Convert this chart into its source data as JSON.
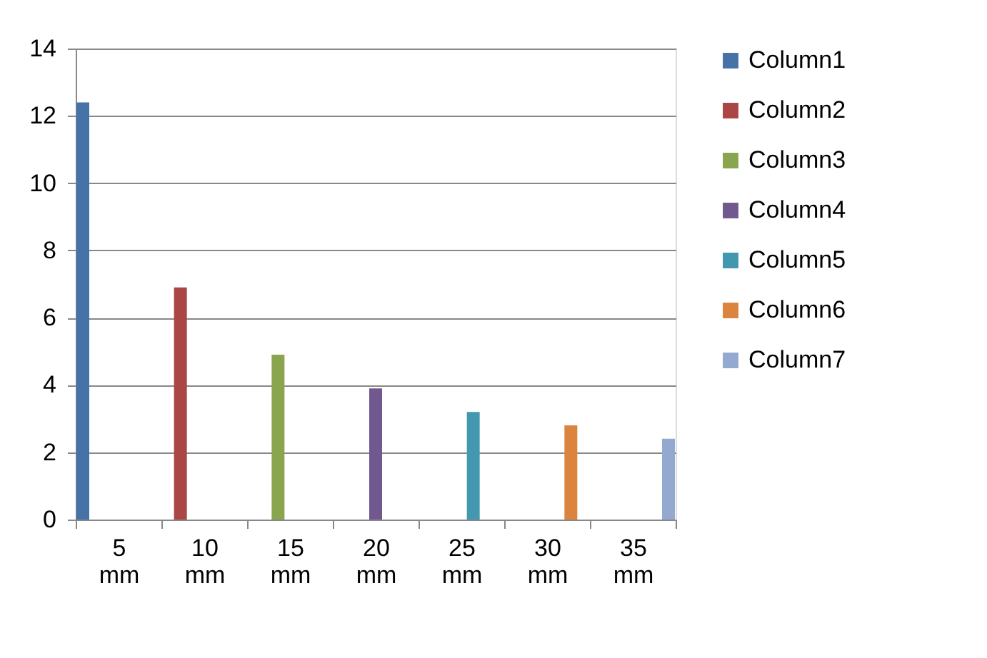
{
  "chart_data": {
    "type": "bar",
    "categories": [
      "5 mm",
      "10 mm",
      "15 mm",
      "20 mm",
      "25 mm",
      "30 mm",
      "35 mm"
    ],
    "series": [
      {
        "name": "Column1",
        "color": "#4572a7",
        "values": [
          12.4,
          null,
          null,
          null,
          null,
          null,
          null
        ]
      },
      {
        "name": "Column2",
        "color": "#aa4643",
        "values": [
          null,
          6.9,
          null,
          null,
          null,
          null,
          null
        ]
      },
      {
        "name": "Column3",
        "color": "#89a54e",
        "values": [
          null,
          null,
          4.9,
          null,
          null,
          null,
          null
        ]
      },
      {
        "name": "Column4",
        "color": "#71588f",
        "values": [
          null,
          null,
          null,
          3.9,
          null,
          null,
          null
        ]
      },
      {
        "name": "Column5",
        "color": "#4198af",
        "values": [
          null,
          null,
          null,
          null,
          3.2,
          null,
          null
        ]
      },
      {
        "name": "Column6",
        "color": "#db843d",
        "values": [
          null,
          null,
          null,
          null,
          null,
          2.8,
          null
        ]
      },
      {
        "name": "Column7",
        "color": "#93a9cf",
        "values": [
          null,
          null,
          null,
          null,
          null,
          null,
          2.4
        ]
      }
    ],
    "ylim": [
      0,
      14
    ],
    "yticks": [
      0,
      2,
      4,
      6,
      8,
      10,
      12,
      14
    ],
    "grid": "y",
    "legend": "right"
  }
}
